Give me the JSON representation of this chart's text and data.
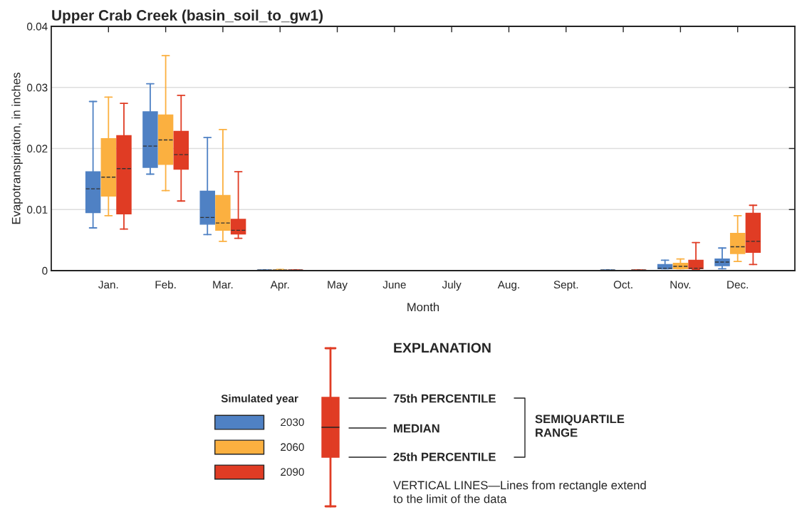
{
  "chart_data": {
    "type": "box",
    "title": "Upper Crab Creek (basin_soil_to_gw1)",
    "xlabel": "Month",
    "ylabel": "Evapotranspiration, in inches",
    "categories": [
      "Jan.",
      "Feb.",
      "Mar.",
      "Apr.",
      "May",
      "June",
      "July",
      "Aug.",
      "Sept.",
      "Oct.",
      "Nov.",
      "Dec."
    ],
    "ylim": [
      0,
      0.04
    ],
    "yticks": [
      0,
      0.01,
      0.02,
      0.03,
      0.04
    ],
    "grid": "y",
    "legend": "bottom",
    "legend_title": "Simulated year",
    "series": [
      {
        "name": "2030",
        "color": "#4f81c4",
        "boxes": [
          {
            "low": 0.007,
            "q1": 0.0095,
            "median": 0.0134,
            "q3": 0.0162,
            "high": 0.0277
          },
          {
            "low": 0.0158,
            "q1": 0.0169,
            "median": 0.0204,
            "q3": 0.026,
            "high": 0.0306
          },
          {
            "low": 0.0059,
            "q1": 0.0076,
            "median": 0.0087,
            "q3": 0.013,
            "high": 0.0218
          },
          {
            "low": 0,
            "q1": 0,
            "median": 0.0001,
            "q3": 0.0001,
            "high": 0.0001
          },
          {
            "low": 0,
            "q1": 0,
            "median": 0,
            "q3": 0,
            "high": 0
          },
          {
            "low": 0,
            "q1": 0,
            "median": 0,
            "q3": 0,
            "high": 0
          },
          {
            "low": 0,
            "q1": 0,
            "median": 0,
            "q3": 0,
            "high": 0
          },
          {
            "low": 0,
            "q1": 0,
            "median": 0,
            "q3": 0,
            "high": 0
          },
          {
            "low": 0,
            "q1": 0,
            "median": 0,
            "q3": 0,
            "high": 0
          },
          {
            "low": 0,
            "q1": 0,
            "median": 0.0001,
            "q3": 0.0001,
            "high": 0.0001
          },
          {
            "low": 0.0003,
            "q1": 0.0003,
            "median": 0.0004,
            "q3": 0.001,
            "high": 0.0017
          },
          {
            "low": 0.0003,
            "q1": 0.0008,
            "median": 0.0014,
            "q3": 0.0019,
            "high": 0.0037
          }
        ]
      },
      {
        "name": "2060",
        "color": "#fbb040",
        "boxes": [
          {
            "low": 0.009,
            "q1": 0.0122,
            "median": 0.0153,
            "q3": 0.0216,
            "high": 0.0284
          },
          {
            "low": 0.0131,
            "q1": 0.0174,
            "median": 0.0214,
            "q3": 0.0255,
            "high": 0.0352
          },
          {
            "low": 0.0048,
            "q1": 0.0066,
            "median": 0.0078,
            "q3": 0.0123,
            "high": 0.0231
          },
          {
            "low": 0,
            "q1": 0,
            "median": 0.0001,
            "q3": 0.0001,
            "high": 0.0002
          },
          {
            "low": 0,
            "q1": 0,
            "median": 0,
            "q3": 0,
            "high": 0
          },
          {
            "low": 0,
            "q1": 0,
            "median": 0,
            "q3": 0,
            "high": 0
          },
          {
            "low": 0,
            "q1": 0,
            "median": 0,
            "q3": 0,
            "high": 0
          },
          {
            "low": 0,
            "q1": 0,
            "median": 0,
            "q3": 0,
            "high": 0
          },
          {
            "low": 0,
            "q1": 0,
            "median": 0,
            "q3": 0,
            "high": 0
          },
          {
            "low": 0,
            "q1": 0,
            "median": 0,
            "q3": 0,
            "high": 0
          },
          {
            "low": 0.0003,
            "q1": 0.0003,
            "median": 0.0007,
            "q3": 0.0012,
            "high": 0.0019
          },
          {
            "low": 0.0015,
            "q1": 0.0028,
            "median": 0.0039,
            "q3": 0.0061,
            "high": 0.009
          }
        ]
      },
      {
        "name": "2090",
        "color": "#e03c24",
        "boxes": [
          {
            "low": 0.0068,
            "q1": 0.0093,
            "median": 0.0167,
            "q3": 0.0221,
            "high": 0.0274
          },
          {
            "low": 0.0114,
            "q1": 0.0166,
            "median": 0.019,
            "q3": 0.0228,
            "high": 0.0287
          },
          {
            "low": 0.0053,
            "q1": 0.006,
            "median": 0.0066,
            "q3": 0.0084,
            "high": 0.0162
          },
          {
            "low": 0,
            "q1": 0,
            "median": 0.0001,
            "q3": 0.0001,
            "high": 0.0001
          },
          {
            "low": 0,
            "q1": 0,
            "median": 0,
            "q3": 0,
            "high": 0
          },
          {
            "low": 0,
            "q1": 0,
            "median": 0,
            "q3": 0,
            "high": 0
          },
          {
            "low": 0,
            "q1": 0,
            "median": 0,
            "q3": 0,
            "high": 0
          },
          {
            "low": 0,
            "q1": 0,
            "median": 0,
            "q3": 0,
            "high": 0
          },
          {
            "low": 0,
            "q1": 0,
            "median": 0,
            "q3": 0,
            "high": 0
          },
          {
            "low": 0,
            "q1": 0,
            "median": 0.0001,
            "q3": 0.0001,
            "high": 0.0001
          },
          {
            "low": 0.0002,
            "q1": 0.0003,
            "median": 0.0004,
            "q3": 0.0017,
            "high": 0.0046
          },
          {
            "low": 0.001,
            "q1": 0.003,
            "median": 0.0048,
            "q3": 0.0094,
            "high": 0.0107
          }
        ]
      }
    ],
    "annotations": [
      "EXPLANATION",
      "75th PERCENTILE",
      "MEDIAN",
      "25th PERCENTILE",
      "SEMIQUARTILE RANGE",
      "VERTICAL LINES—Lines from rectangle extend to the limit of the data"
    ]
  }
}
